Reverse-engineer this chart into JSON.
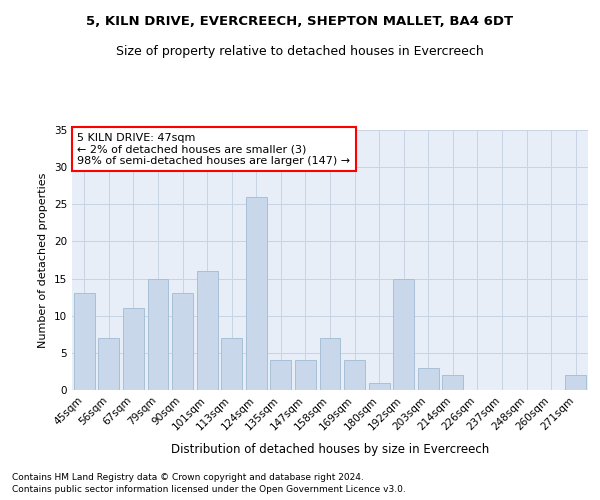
{
  "title1": "5, KILN DRIVE, EVERCREECH, SHEPTON MALLET, BA4 6DT",
  "title2": "Size of property relative to detached houses in Evercreech",
  "xlabel": "Distribution of detached houses by size in Evercreech",
  "ylabel": "Number of detached properties",
  "categories": [
    "45sqm",
    "56sqm",
    "67sqm",
    "79sqm",
    "90sqm",
    "101sqm",
    "113sqm",
    "124sqm",
    "135sqm",
    "147sqm",
    "158sqm",
    "169sqm",
    "180sqm",
    "192sqm",
    "203sqm",
    "214sqm",
    "226sqm",
    "237sqm",
    "248sqm",
    "260sqm",
    "271sqm"
  ],
  "values": [
    13,
    7,
    11,
    15,
    13,
    16,
    7,
    26,
    4,
    4,
    7,
    4,
    1,
    15,
    3,
    2,
    0,
    0,
    0,
    0,
    2
  ],
  "bar_color": "#c8d8ea",
  "bar_edge_color": "#a8c0d6",
  "annotation_text": "5 KILN DRIVE: 47sqm\n← 2% of detached houses are smaller (3)\n98% of semi-detached houses are larger (147) →",
  "annotation_box_edge_color": "red",
  "ylim": [
    0,
    35
  ],
  "yticks": [
    0,
    5,
    10,
    15,
    20,
    25,
    30,
    35
  ],
  "grid_color": "#c8d4e4",
  "background_color": "#e8eef8",
  "footnote1": "Contains HM Land Registry data © Crown copyright and database right 2024.",
  "footnote2": "Contains public sector information licensed under the Open Government Licence v3.0.",
  "title1_fontsize": 9.5,
  "title2_fontsize": 9,
  "xlabel_fontsize": 8.5,
  "ylabel_fontsize": 8,
  "tick_fontsize": 7.5,
  "annotation_fontsize": 8,
  "footnote_fontsize": 6.5
}
